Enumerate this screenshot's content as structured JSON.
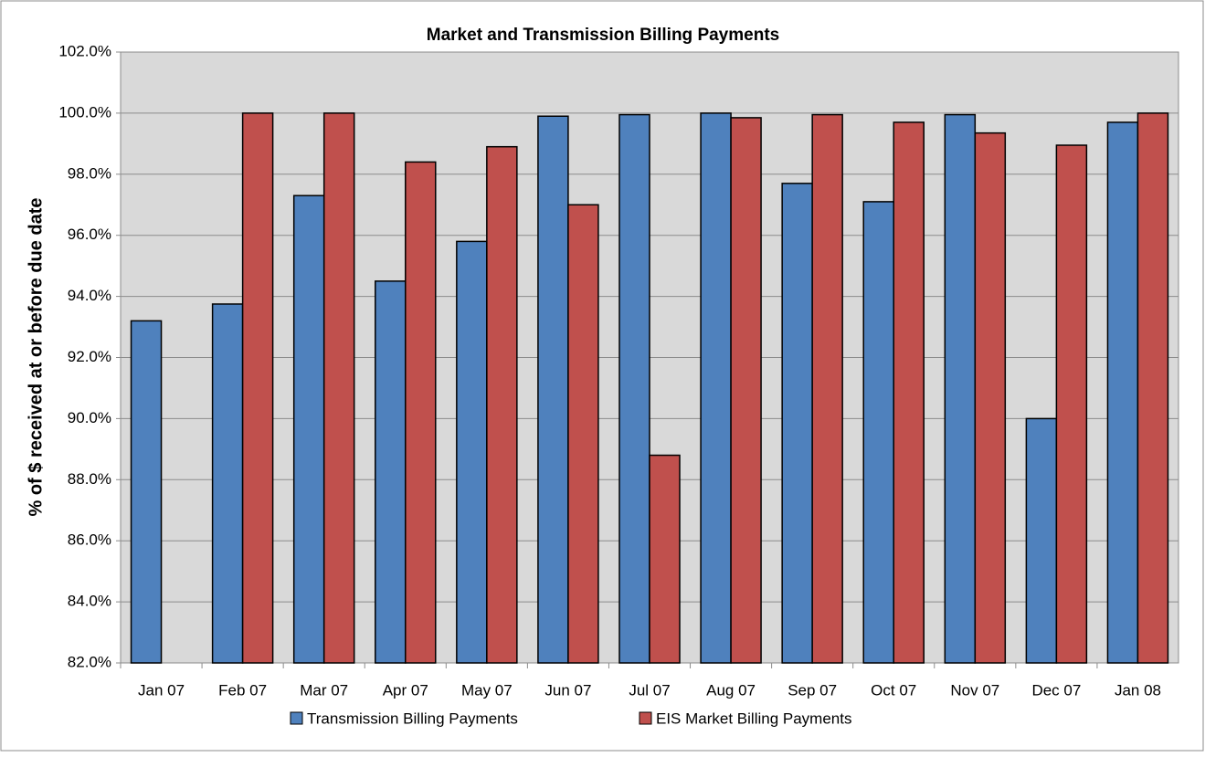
{
  "chart_data": {
    "type": "bar",
    "title": "Market and Transmission Billing Payments",
    "y_label": "% of $ received at or before due date",
    "categories": [
      "Jan 07",
      "Feb 07",
      "Mar 07",
      "Apr 07",
      "May 07",
      "Jun 07",
      "Jul 07",
      "Aug 07",
      "Sep 07",
      "Oct 07",
      "Nov 07",
      "Dec 07",
      "Jan 08"
    ],
    "series": [
      {
        "name": "Transmission Billing Payments",
        "color": "#4f81bd",
        "values": [
          93.2,
          93.75,
          97.3,
          94.5,
          95.8,
          99.9,
          99.95,
          100.0,
          97.7,
          97.1,
          99.95,
          90.0,
          99.7
        ]
      },
      {
        "name": "EIS Market Billing Payments",
        "color": "#c0504d",
        "values": [
          null,
          100.0,
          100.0,
          98.4,
          98.9,
          97.0,
          88.8,
          99.85,
          99.95,
          99.7,
          99.35,
          98.95,
          100.0
        ]
      }
    ],
    "ylim": [
      82,
      102
    ],
    "yticks": [
      {
        "value": 82,
        "label": "82.0%"
      },
      {
        "value": 84,
        "label": "84.0%"
      },
      {
        "value": 86,
        "label": "86.0%"
      },
      {
        "value": 88,
        "label": "88.0%"
      },
      {
        "value": 90,
        "label": "90.0%"
      },
      {
        "value": 92,
        "label": "92.0%"
      },
      {
        "value": 94,
        "label": "94.0%"
      },
      {
        "value": 96,
        "label": "96.0%"
      },
      {
        "value": 98,
        "label": "98.0%"
      },
      {
        "value": 100,
        "label": "100.0%"
      },
      {
        "value": 102,
        "label": "102.0%"
      }
    ],
    "grid": true,
    "legend": "bottom"
  }
}
